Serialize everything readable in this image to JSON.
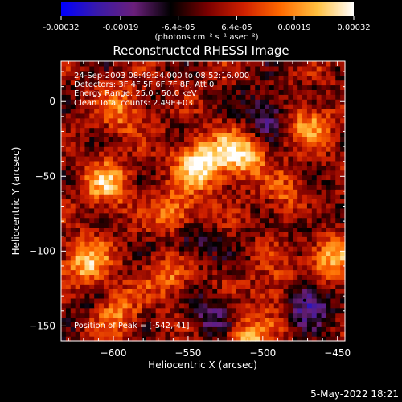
{
  "figure": {
    "title": "Reconstructed RHESSI Image",
    "timestamp": "5-May-2022 18:21"
  },
  "colorbar": {
    "tick_labels": [
      "-0.00032",
      "-0.00019",
      "-6.4e-05",
      "6.4e-05",
      "0.00019",
      "0.00032"
    ],
    "unit_label": "(photons cm⁻² s⁻¹ asec⁻²)",
    "range": [
      -0.00032,
      0.00032
    ],
    "colors": [
      "#0000ff",
      "#3a1aa8",
      "#6a1f7a",
      "#000000",
      "#7a0000",
      "#d02000",
      "#ff6a00",
      "#ffc040",
      "#ffffff"
    ]
  },
  "annotations": {
    "time_range": "24-Sep-2003 08:49:24.000 to 08:52:16.000",
    "detectors": "Detectors: 3F 4F 5F 6F 7F 8F, Att 0",
    "energy": "Energy Range: 25.0 - 50.0 keV",
    "clean": "Clean    Total counts: 2.49E+03",
    "peak": "Position of Peak = [-542,-41]"
  },
  "chart_data": {
    "type": "heatmap",
    "title": "Reconstructed RHESSI Image",
    "xlabel": "Heliocentric X (arcsec)",
    "ylabel": "Heliocentric Y (arcsec)",
    "xlim": [
      -635,
      -445
    ],
    "ylim": [
      -160,
      27
    ],
    "x_ticks": [
      -600,
      -550,
      -500,
      -450
    ],
    "x_tick_labels": [
      "−600",
      "−550",
      "−500",
      "−450"
    ],
    "y_ticks": [
      0,
      -50,
      -100,
      -150
    ],
    "y_tick_labels": [
      "0",
      "−50",
      "−100",
      "−150"
    ],
    "peak_position": [
      -542,
      -41
    ],
    "marker_position": [
      -472,
      -133
    ],
    "value_range": [
      -0.00032,
      0.00032
    ],
    "hot_spots": [
      {
        "x": -542,
        "y": -41,
        "value": 0.00032
      },
      {
        "x": -515,
        "y": -35,
        "value": 0.00028
      },
      {
        "x": -604,
        "y": -55,
        "value": 0.00022
      },
      {
        "x": -618,
        "y": -108,
        "value": 0.00024
      },
      {
        "x": -558,
        "y": -75,
        "value": 0.0002
      },
      {
        "x": -470,
        "y": -15,
        "value": 0.00018
      },
      {
        "x": -455,
        "y": -105,
        "value": 0.00024
      },
      {
        "x": -560,
        "y": -115,
        "value": 0.00018
      },
      {
        "x": -510,
        "y": -160,
        "value": 0.00022
      },
      {
        "x": -595,
        "y": -5,
        "value": 0.00016
      },
      {
        "x": -490,
        "y": -125,
        "value": 0.00014
      },
      {
        "x": -600,
        "y": -140,
        "value": 0.0002
      },
      {
        "x": -480,
        "y": -65,
        "value": 0.00016
      }
    ],
    "cold_spots": [
      {
        "x": -470,
        "y": -133,
        "value": -0.00024
      },
      {
        "x": -498,
        "y": -8,
        "value": -0.00018
      },
      {
        "x": -550,
        "y": -95,
        "value": -0.00016
      },
      {
        "x": -470,
        "y": -75,
        "value": -0.00012
      },
      {
        "x": -535,
        "y": -143,
        "value": -0.00014
      },
      {
        "x": -613,
        "y": -135,
        "value": -0.0001
      }
    ]
  }
}
